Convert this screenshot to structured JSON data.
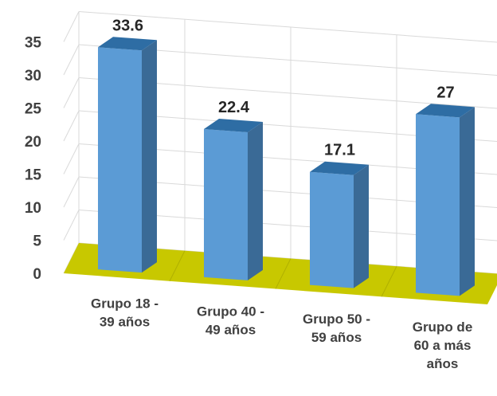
{
  "chart_data": {
    "type": "bar",
    "style": "3d-column",
    "categories": [
      [
        "Grupo 18 -",
        "39 años"
      ],
      [
        "Grupo 40 -",
        "49 años"
      ],
      [
        "Grupo 50 -",
        "59 años"
      ],
      [
        "Grupo de",
        "60 a más",
        "años"
      ]
    ],
    "values": [
      33.6,
      22.4,
      17.1,
      27
    ],
    "data_labels": [
      "33.6",
      "22.4",
      "17.1",
      "27"
    ],
    "ylim": [
      0,
      35
    ],
    "yticks": [
      "0",
      "5",
      "10",
      "15",
      "20",
      "25",
      "30",
      "35"
    ],
    "grid": true,
    "legend": "none",
    "colors": {
      "bar_front": "#5B9BD5",
      "bar_side": "#3A6A96",
      "bar_top": "#2E6DA4",
      "floor": "#C8C800",
      "grid": "#D9D9D9"
    }
  }
}
